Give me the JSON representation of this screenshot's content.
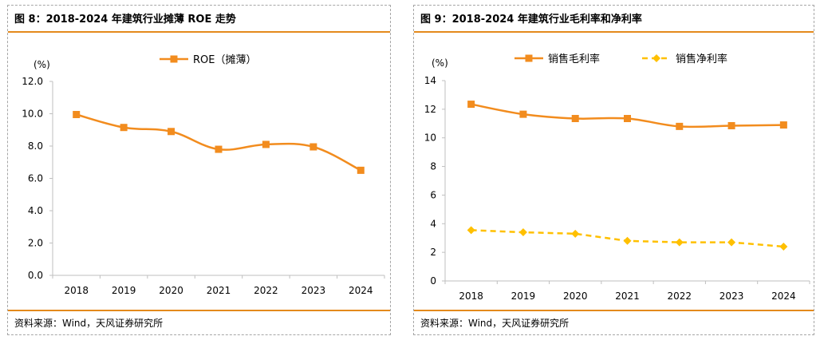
{
  "panels": [
    {
      "title": "图 8：2018-2024 年建筑行业摊薄 ROE 走势",
      "source": "资料来源：Wind，天风证券研究所"
    },
    {
      "title": "图 9：2018-2024 年建筑行业毛利率和净利率",
      "source": "资料来源：Wind，天风证券研究所"
    }
  ],
  "chart_data": [
    {
      "type": "line",
      "title": "",
      "ylabel": "(%)",
      "xlabel": "",
      "categories": [
        "2018",
        "2019",
        "2020",
        "2021",
        "2022",
        "2023",
        "2024"
      ],
      "ylim": [
        0,
        12
      ],
      "yticks": [
        "0.0",
        "2.0",
        "4.0",
        "6.0",
        "8.0",
        "10.0",
        "12.0"
      ],
      "legend_position": "top",
      "grid": false,
      "series": [
        {
          "name": "ROE（摊薄）",
          "values": [
            9.95,
            9.15,
            8.9,
            7.8,
            8.1,
            7.95,
            6.5
          ],
          "color": "#f28c1e",
          "marker": "square",
          "dash": false,
          "smooth": true
        }
      ]
    },
    {
      "type": "line",
      "title": "",
      "ylabel": "(%)",
      "xlabel": "",
      "categories": [
        "2018",
        "2019",
        "2020",
        "2021",
        "2022",
        "2023",
        "2024"
      ],
      "ylim": [
        0,
        14
      ],
      "yticks": [
        "0",
        "2",
        "4",
        "6",
        "8",
        "10",
        "12",
        "14"
      ],
      "legend_position": "top",
      "grid": false,
      "series": [
        {
          "name": "销售毛利率",
          "values": [
            12.35,
            11.65,
            11.35,
            11.35,
            10.8,
            10.85,
            10.9
          ],
          "color": "#f28c1e",
          "marker": "square",
          "dash": false,
          "smooth": true
        },
        {
          "name": "销售净利率",
          "values": [
            3.55,
            3.4,
            3.3,
            2.8,
            2.7,
            2.7,
            2.4
          ],
          "color": "#ffc000",
          "marker": "diamond",
          "dash": true,
          "smooth": false
        }
      ]
    }
  ]
}
